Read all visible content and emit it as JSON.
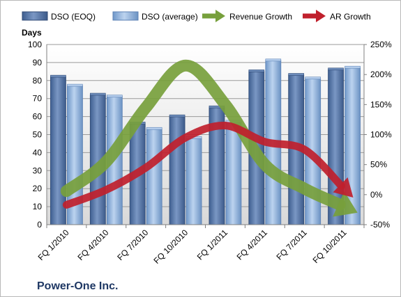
{
  "company_label": "Power-One Inc.",
  "chart_data": {
    "type": "bar",
    "title": "",
    "ylabel": "Days",
    "ylim": [
      0,
      100
    ],
    "y_ticks": [
      0,
      10,
      20,
      30,
      40,
      50,
      60,
      70,
      80,
      90,
      100
    ],
    "y2lim": [
      -50,
      250
    ],
    "y2_ticks": [
      "-50%",
      "0%",
      "50%",
      "100%",
      "150%",
      "200%",
      "250%"
    ],
    "y2_tick_values": [
      -50,
      0,
      50,
      100,
      150,
      200,
      250
    ],
    "categories": [
      "FQ 1/2010",
      "FQ 4/2010",
      "FQ 7/2010",
      "FQ 10/2010",
      "FQ 1/2011",
      "FQ 4/2011",
      "FQ 7/2011",
      "FQ 10/2011"
    ],
    "legend_position": "top",
    "grid": true,
    "series": [
      {
        "name": "DSO (EOQ)",
        "type": "bar",
        "axis": "left",
        "color": "#4f6fa0",
        "values": [
          82,
          72,
          56,
          60,
          65,
          85,
          83,
          86
        ]
      },
      {
        "name": "DSO (average)",
        "type": "bar",
        "axis": "left",
        "color": "#8db3e2",
        "values": [
          77,
          71,
          53,
          48,
          57,
          91,
          81,
          87
        ]
      },
      {
        "name": "Revenue Growth",
        "type": "arrow",
        "axis": "right",
        "color": "#77a03c",
        "values": [
          6,
          55,
          145,
          215,
          150,
          50,
          10,
          -20
        ]
      },
      {
        "name": "AR Growth",
        "type": "arrow",
        "axis": "right",
        "color": "#c0202c",
        "values": [
          -17,
          8,
          45,
          95,
          115,
          88,
          75,
          10
        ]
      }
    ]
  }
}
